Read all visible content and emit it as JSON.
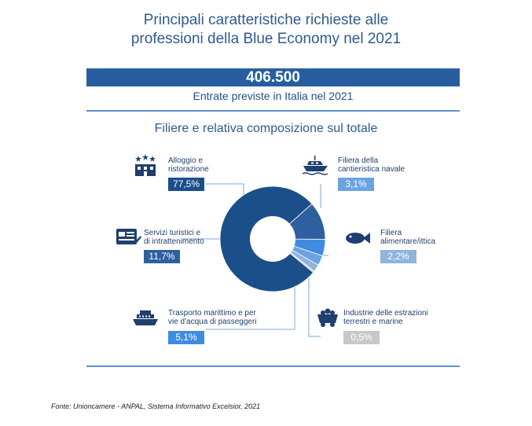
{
  "header": {
    "title_line1": "Principali caratteristiche richieste alle",
    "title_line2": "professioni della Blue Economy nel 2021",
    "total": "406.500",
    "total_caption": "Entrate previste in Italia nel 2021",
    "subtitle": "Filiere e relativa composizione sul totale"
  },
  "chart_data": {
    "type": "pie",
    "title": "Filiere e relativa composizione sul totale",
    "unit": "%",
    "categories": [
      "Alloggio e ristorazione",
      "Servizi turistici e di intrattenimento",
      "Trasporto marittimo e per vie d'acqua di passeggeri",
      "Filiera della cantieristica navale",
      "Filiera alimentare/ittica",
      "Industrie delle estrazioni terrestri e marine"
    ],
    "values": [
      77.5,
      11.7,
      5.1,
      3.1,
      2.2,
      0.5
    ],
    "colors": [
      "#1b4f8a",
      "#2e5f9e",
      "#3f8be0",
      "#6aa4e0",
      "#8fb4dd",
      "#c8c8c8"
    ]
  },
  "labels": {
    "alloggio_1": "Alloggio e",
    "alloggio_2": "ristorazione",
    "alloggio_value": "77,5%",
    "servizi_1": "Servizi turistici e",
    "servizi_2": "di intrattenimento",
    "servizi_value": "11,7%",
    "trasporto_1": "Trasporto marittimo e per",
    "trasporto_2": "vie d'acqua di passeggeri",
    "trasporto_value": "5,1%",
    "cantieristica_1": "Filiera della",
    "cantieristica_2": "cantieristica navale",
    "cantieristica_value": "3,1%",
    "ittica_1": "Filiera",
    "ittica_2": "alimentare/ittica",
    "ittica_value": "2,2%",
    "estrazioni_1": "Industrie delle estrazioni",
    "estrazioni_2": "terrestri e marine",
    "estrazioni_value": "0,5%"
  },
  "icons": [
    "hotel-icon",
    "computer-screen-icon",
    "passenger-ship-icon",
    "yacht-icon",
    "fish-icon",
    "mining-cart-icon"
  ],
  "source": "Fonte: Unioncamere - ANPAL, Sistema Informativo Excelsior, 2021"
}
